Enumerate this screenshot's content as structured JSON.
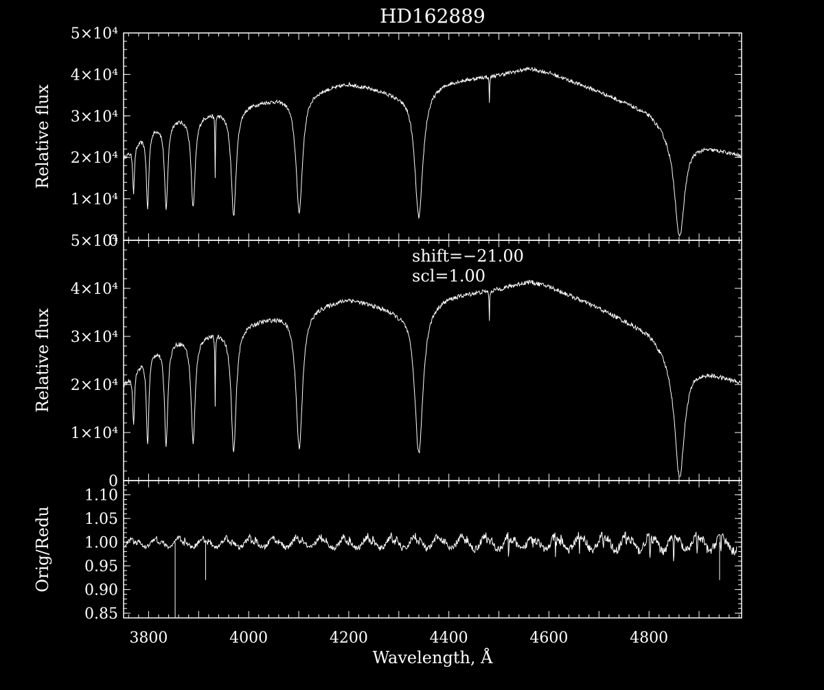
{
  "title": "HD162889",
  "xlabel": "Wavelength, Å",
  "colors": {
    "background": "#000000",
    "foreground": "#ffffff"
  },
  "chart_data": [
    {
      "type": "line",
      "panel": "top",
      "ylabel": "Relative flux",
      "xlim": [
        3750,
        4985
      ],
      "ylim": [
        0,
        50000
      ],
      "yticks": [
        0,
        10000,
        20000,
        30000,
        40000,
        50000
      ],
      "yticklabels": [
        "0",
        "1×10⁴",
        "2×10⁴",
        "3×10⁴",
        "4×10⁴",
        "5×10⁴"
      ],
      "continuum": [
        [
          3750,
          20000
        ],
        [
          3800,
          27000
        ],
        [
          3850,
          29500
        ],
        [
          3900,
          30500
        ],
        [
          3950,
          31500
        ],
        [
          4000,
          33000
        ],
        [
          4100,
          35500
        ],
        [
          4200,
          38000
        ],
        [
          4300,
          35500
        ],
        [
          4350,
          37000
        ],
        [
          4400,
          38500
        ],
        [
          4500,
          40000
        ],
        [
          4560,
          41500
        ],
        [
          4600,
          40500
        ],
        [
          4700,
          36000
        ],
        [
          4800,
          31000
        ],
        [
          4840,
          27000
        ],
        [
          4900,
          23500
        ],
        [
          4985,
          20500
        ]
      ],
      "absorption_lines": [
        {
          "center": 3770,
          "depth": 11000,
          "width": 2
        },
        {
          "center": 3798,
          "depth": 19000,
          "width": 3
        },
        {
          "center": 3835,
          "depth": 21000,
          "width": 4
        },
        {
          "center": 3889,
          "depth": 22000,
          "width": 5
        },
        {
          "center": 3933,
          "depth": 15000,
          "width": 0.6
        },
        {
          "center": 3970,
          "depth": 26000,
          "width": 6
        },
        {
          "center": 4101,
          "depth": 28500,
          "width": 8
        },
        {
          "center": 4340,
          "depth": 31000,
          "width": 10
        },
        {
          "center": 4481,
          "depth": 6500,
          "width": 0.6
        },
        {
          "center": 4861,
          "depth": 25000,
          "width": 12
        }
      ]
    },
    {
      "type": "line",
      "panel": "middle",
      "ylabel": "Relative flux",
      "xlim": [
        3750,
        4985
      ],
      "ylim": [
        0,
        50000
      ],
      "yticks": [
        0,
        10000,
        20000,
        30000,
        40000,
        50000
      ],
      "yticklabels": [
        "0",
        "1×10⁴",
        "2×10⁴",
        "3×10⁴",
        "4×10⁴",
        "5×10⁴"
      ],
      "annotations": [
        "shift=−21.00",
        "scl=1.00"
      ]
    },
    {
      "type": "line",
      "panel": "bottom",
      "ylabel": "Orig/Redu",
      "xlim": [
        3750,
        4985
      ],
      "ylim": [
        0.84,
        1.13
      ],
      "yticks": [
        0.85,
        0.9,
        0.95,
        1.0,
        1.05,
        1.1
      ],
      "yticklabels": [
        "0.85",
        "0.90",
        "0.95",
        "1.00",
        "1.05",
        "1.10"
      ],
      "xticks": [
        3800,
        4000,
        4200,
        4400,
        4600,
        4800
      ],
      "xticklabels": [
        "3800",
        "4000",
        "4200",
        "4400",
        "4600",
        "4800"
      ],
      "baseline": 1.0,
      "order_period_angstrom": 47,
      "spikes": [
        {
          "x": 3853,
          "y": 0.84
        },
        {
          "x": 3914,
          "y": 0.92
        },
        {
          "x": 4941,
          "y": 0.92
        }
      ]
    }
  ]
}
